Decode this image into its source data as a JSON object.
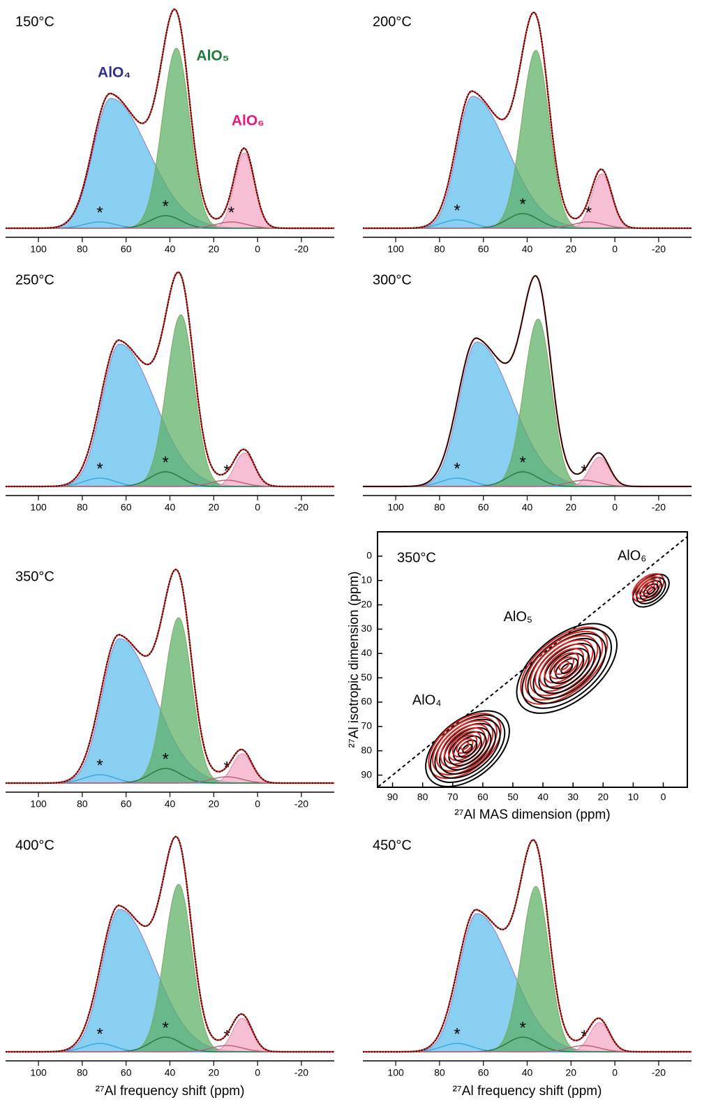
{
  "chart_data": [
    {
      "type": "spectrum",
      "title": "150°C",
      "xlim": [
        115,
        -35
      ],
      "ylim": [
        0,
        100
      ],
      "xticks": [
        100,
        80,
        60,
        40,
        20,
        0,
        -20
      ],
      "experiment_style": "dotted",
      "series": [
        {
          "name": "AlO₄",
          "color": "#5bbcec",
          "center": 67,
          "height": 62,
          "widths": [
            17,
            8
          ]
        },
        {
          "name": "AlO₅",
          "color": "#5cae64",
          "center": 37,
          "height": 86,
          "widths": [
            6,
            6.5
          ]
        },
        {
          "name": "AlO₆",
          "color": "#f4a6c2",
          "center": 6,
          "height": 36,
          "widths": [
            4.5,
            4.5
          ]
        }
      ],
      "satellites": [
        {
          "label": "*",
          "color": "#3aa8e0",
          "center": 72,
          "height": 3,
          "widths": [
            7,
            7
          ]
        },
        {
          "label": "*",
          "color": "#2a7a40",
          "center": 42,
          "height": 6,
          "widths": [
            7,
            7
          ]
        },
        {
          "label": "*",
          "color": "#c0607c",
          "center": 12,
          "height": 3,
          "widths": [
            7,
            7
          ]
        }
      ]
    },
    {
      "type": "spectrum",
      "title": "200°C",
      "xlim": [
        115,
        -35
      ],
      "ylim": [
        0,
        100
      ],
      "xticks": [
        100,
        80,
        60,
        40,
        20,
        0,
        -20
      ],
      "experiment_style": "dotted",
      "series": [
        {
          "color": "#5bbcec",
          "center": 65,
          "height": 63,
          "widths": [
            16,
            7
          ]
        },
        {
          "color": "#5cae64",
          "center": 36,
          "height": 85,
          "widths": [
            6,
            6.5
          ]
        },
        {
          "color": "#f4a6c2",
          "center": 6,
          "height": 26,
          "widths": [
            4.5,
            4.5
          ]
        }
      ],
      "satellites": [
        {
          "label": "*",
          "color": "#3aa8e0",
          "center": 72,
          "height": 4,
          "widths": [
            7,
            7
          ]
        },
        {
          "label": "*",
          "color": "#2a7a40",
          "center": 42,
          "height": 7,
          "widths": [
            7,
            7
          ]
        },
        {
          "label": "*",
          "color": "#c0607c",
          "center": 12,
          "height": 3,
          "widths": [
            7,
            7
          ]
        }
      ]
    },
    {
      "type": "spectrum",
      "title": "250°C",
      "xlim": [
        115,
        -35
      ],
      "ylim": [
        0,
        100
      ],
      "xticks": [
        100,
        80,
        60,
        40,
        20,
        0,
        -20
      ],
      "experiment_style": "dotted",
      "series": [
        {
          "color": "#5bbcec",
          "center": 63,
          "height": 68,
          "widths": [
            16,
            8
          ]
        },
        {
          "color": "#5cae64",
          "center": 35,
          "height": 82,
          "widths": [
            6,
            6.5
          ]
        },
        {
          "color": "#f4a6c2",
          "center": 6,
          "height": 16,
          "widths": [
            4.5,
            4.5
          ]
        }
      ],
      "satellites": [
        {
          "label": "*",
          "color": "#3aa8e0",
          "center": 72,
          "height": 4,
          "widths": [
            7,
            7
          ]
        },
        {
          "label": "*",
          "color": "#2a7a40",
          "center": 42,
          "height": 7,
          "widths": [
            7,
            7
          ]
        },
        {
          "label": "*",
          "color": "#c0607c",
          "center": 14,
          "height": 3,
          "widths": [
            7,
            7
          ]
        }
      ]
    },
    {
      "type": "spectrum",
      "title": "300°C",
      "xlim": [
        115,
        -35
      ],
      "ylim": [
        0,
        100
      ],
      "xticks": [
        100,
        80,
        60,
        40,
        20,
        0,
        -20
      ],
      "experiment_style": "solid",
      "series": [
        {
          "color": "#5bbcec",
          "center": 63,
          "height": 69,
          "widths": [
            16,
            8
          ]
        },
        {
          "color": "#5cae64",
          "center": 35,
          "height": 80,
          "widths": [
            6,
            6.5
          ]
        },
        {
          "color": "#f4a6c2",
          "center": 7,
          "height": 14,
          "widths": [
            4.5,
            4.5
          ]
        }
      ],
      "satellites": [
        {
          "label": "*",
          "color": "#3aa8e0",
          "center": 72,
          "height": 4,
          "widths": [
            7,
            7
          ]
        },
        {
          "label": "*",
          "color": "#2a7a40",
          "center": 42,
          "height": 7,
          "widths": [
            7,
            7
          ]
        },
        {
          "label": "*",
          "color": "#c0607c",
          "center": 14,
          "height": 3,
          "widths": [
            7,
            7
          ]
        }
      ]
    },
    {
      "type": "spectrum",
      "title": "350°C",
      "xlim": [
        115,
        -35
      ],
      "ylim": [
        0,
        100
      ],
      "xticks": [
        100,
        80,
        60,
        40,
        20,
        0,
        -20
      ],
      "experiment_style": "dotted",
      "series": [
        {
          "color": "#5bbcec",
          "center": 63,
          "height": 69,
          "widths": [
            16,
            8
          ]
        },
        {
          "color": "#5cae64",
          "center": 36,
          "height": 79,
          "widths": [
            6,
            6.5
          ]
        },
        {
          "color": "#f4a6c2",
          "center": 7,
          "height": 14,
          "widths": [
            4.5,
            4.5
          ]
        }
      ],
      "satellites": [
        {
          "label": "*",
          "color": "#3aa8e0",
          "center": 72,
          "height": 4,
          "widths": [
            7,
            7
          ]
        },
        {
          "label": "*",
          "color": "#2a7a40",
          "center": 42,
          "height": 7,
          "widths": [
            7,
            7
          ]
        },
        {
          "label": "*",
          "color": "#c0607c",
          "center": 14,
          "height": 3,
          "widths": [
            7,
            7
          ]
        }
      ]
    },
    {
      "type": "contour",
      "title": "350°C",
      "xlabel": "²⁷Al MAS dimension (ppm)",
      "ylabel": "²⁷Al isotropic dimension (ppm)",
      "xlim": [
        95,
        -8
      ],
      "ylim": [
        -10,
        95
      ],
      "xticks": [
        90,
        80,
        70,
        60,
        50,
        40,
        30,
        20,
        10,
        0
      ],
      "yticks": [
        0,
        10,
        20,
        30,
        40,
        50,
        60,
        70,
        80,
        90
      ],
      "peaks": [
        {
          "name": "AlO₆",
          "x": 5,
          "y": 13,
          "rx": 6,
          "ry": 3.5,
          "levels": 5
        },
        {
          "name": "AlO₅",
          "x": 33,
          "y": 45,
          "rx": 17,
          "ry": 9,
          "levels": 9
        },
        {
          "name": "AlO₄",
          "x": 66,
          "y": 78,
          "rx": 14,
          "ry": 8,
          "levels": 9
        }
      ]
    },
    {
      "type": "spectrum",
      "title": "400°C",
      "xlabel": "²⁷Al frequency shift (ppm)",
      "xlim": [
        115,
        -35
      ],
      "ylim": [
        0,
        100
      ],
      "xticks": [
        100,
        80,
        60,
        40,
        20,
        0,
        -20
      ],
      "experiment_style": "dotted",
      "series": [
        {
          "color": "#5bbcec",
          "center": 63,
          "height": 68,
          "widths": [
            16,
            8
          ]
        },
        {
          "color": "#5cae64",
          "center": 36,
          "height": 80,
          "widths": [
            6,
            6.5
          ]
        },
        {
          "color": "#f4a6c2",
          "center": 7,
          "height": 16,
          "widths": [
            4.5,
            4.5
          ]
        }
      ],
      "satellites": [
        {
          "label": "*",
          "color": "#3aa8e0",
          "center": 72,
          "height": 4,
          "widths": [
            7,
            7
          ]
        },
        {
          "label": "*",
          "color": "#2a7a40",
          "center": 42,
          "height": 7,
          "widths": [
            7,
            7
          ]
        },
        {
          "label": "*",
          "color": "#c0607c",
          "center": 14,
          "height": 3,
          "widths": [
            7,
            7
          ]
        }
      ]
    },
    {
      "type": "spectrum",
      "title": "450°C",
      "xlabel": "²⁷Al frequency shift (ppm)",
      "xlim": [
        115,
        -35
      ],
      "ylim": [
        0,
        100
      ],
      "xticks": [
        100,
        80,
        60,
        40,
        20,
        0,
        -20
      ],
      "experiment_style": "dotted",
      "series": [
        {
          "color": "#5bbcec",
          "center": 63,
          "height": 66,
          "widths": [
            16,
            8
          ]
        },
        {
          "color": "#5cae64",
          "center": 36,
          "height": 79,
          "widths": [
            6,
            6.5
          ]
        },
        {
          "color": "#f4a6c2",
          "center": 7,
          "height": 14,
          "widths": [
            4.5,
            4.5
          ]
        }
      ],
      "satellites": [
        {
          "label": "*",
          "color": "#3aa8e0",
          "center": 72,
          "height": 4,
          "widths": [
            7,
            7
          ]
        },
        {
          "label": "*",
          "color": "#2a7a40",
          "center": 42,
          "height": 7,
          "widths": [
            7,
            7
          ]
        },
        {
          "label": "*",
          "color": "#c0607c",
          "center": 14,
          "height": 3,
          "widths": [
            7,
            7
          ]
        }
      ]
    }
  ]
}
